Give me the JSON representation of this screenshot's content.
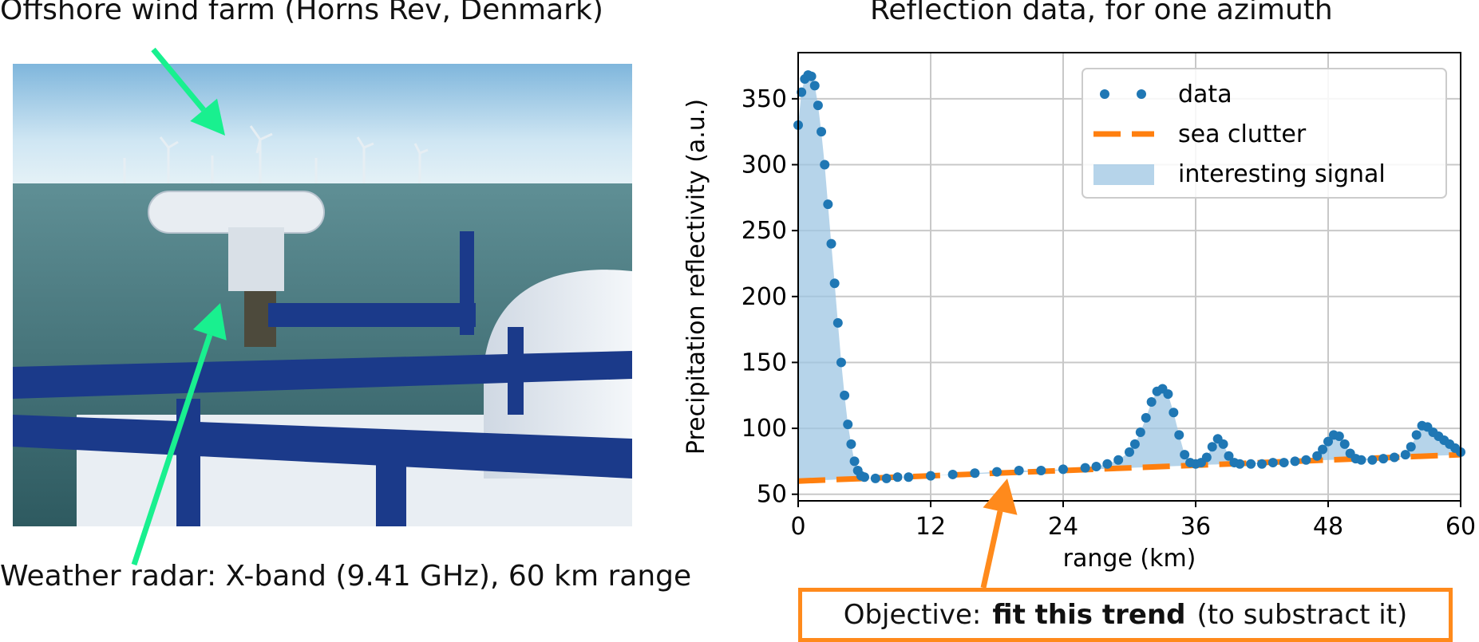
{
  "left_panel": {
    "title": "Offshore wind farm (Horns Rev, Denmark)",
    "caption": "Weather radar: X-band (9.41 GHz), 60 km range",
    "arrow_color": "#19f08f"
  },
  "objective": {
    "prefix": "Objective:",
    "bold": "fit this trend",
    "suffix": "(to substract it)",
    "color": "#ff8a1c"
  },
  "chart_data": {
    "type": "scatter",
    "title": "Reflection data, for one azimuth",
    "xlabel": "range (km)",
    "ylabel": "Precipitation reflectivity (a.u.)",
    "xlim": [
      0,
      60
    ],
    "ylim": [
      45,
      385
    ],
    "xticks": [
      0,
      12,
      24,
      36,
      48,
      60
    ],
    "yticks": [
      50,
      100,
      150,
      200,
      250,
      300,
      350
    ],
    "grid": true,
    "legend_position": "top-right",
    "colors": {
      "data": "#1f77b4",
      "sea_clutter": "#ff7f0e",
      "fill": "#9ec5e3"
    },
    "series": [
      {
        "name": "data",
        "style": "dots",
        "x": [
          0,
          0.3,
          0.6,
          0.9,
          1.2,
          1.5,
          1.8,
          2.1,
          2.4,
          2.7,
          3.0,
          3.3,
          3.6,
          3.9,
          4.2,
          4.5,
          4.8,
          5.1,
          5.4,
          5.7,
          6.0,
          7,
          8,
          9,
          10,
          12,
          14,
          16,
          18,
          20,
          22,
          24,
          26,
          27,
          28,
          29,
          30,
          30.5,
          31,
          31.5,
          32,
          32.5,
          33,
          33.5,
          34,
          34.5,
          35,
          35.5,
          36,
          36.5,
          37,
          37.5,
          38,
          38.5,
          39,
          39.5,
          40,
          41,
          42,
          43,
          44,
          45,
          46,
          47,
          47.5,
          48,
          48.5,
          49,
          49.5,
          50,
          50.5,
          51,
          52,
          53,
          54,
          55,
          55.5,
          56,
          56.5,
          57,
          57.5,
          58,
          58.5,
          59,
          59.5,
          60
        ],
        "y": [
          330,
          355,
          365,
          368,
          367,
          360,
          345,
          325,
          300,
          270,
          240,
          210,
          180,
          150,
          125,
          103,
          88,
          75,
          68,
          64,
          63,
          62,
          62,
          63,
          63,
          64,
          65,
          66,
          67,
          68,
          68,
          69,
          70,
          71,
          73,
          76,
          82,
          88,
          97,
          108,
          120,
          128,
          130,
          126,
          112,
          95,
          80,
          74,
          73,
          74,
          78,
          86,
          92,
          88,
          79,
          74,
          73,
          73,
          73,
          74,
          74,
          75,
          76,
          79,
          84,
          90,
          95,
          94,
          88,
          81,
          77,
          76,
          76,
          77,
          78,
          80,
          86,
          95,
          102,
          101,
          97,
          94,
          91,
          88,
          85,
          82
        ]
      },
      {
        "name": "sea clutter",
        "style": "dashed",
        "x": [
          0,
          60
        ],
        "y": [
          60,
          80
        ]
      },
      {
        "name": "interesting signal",
        "style": "fill-between"
      }
    ]
  }
}
